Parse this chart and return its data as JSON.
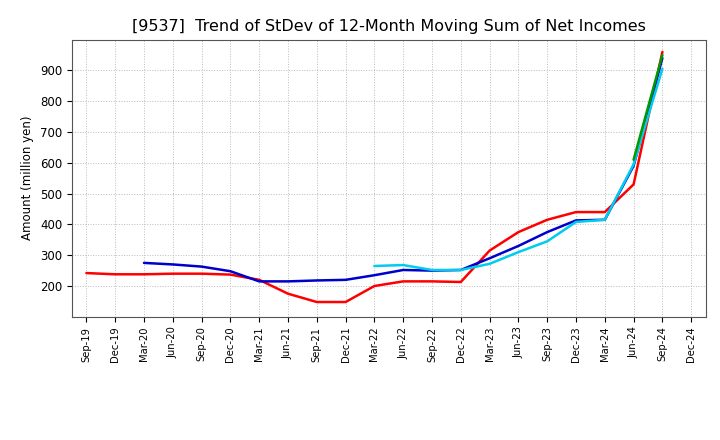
{
  "title": "[9537]  Trend of StDev of 12-Month Moving Sum of Net Incomes",
  "ylabel": "Amount (million yen)",
  "x_labels": [
    "Sep-19",
    "Dec-19",
    "Mar-20",
    "Jun-20",
    "Sep-20",
    "Dec-20",
    "Mar-21",
    "Jun-21",
    "Sep-21",
    "Dec-21",
    "Mar-22",
    "Jun-22",
    "Sep-22",
    "Dec-22",
    "Mar-23",
    "Jun-23",
    "Sep-23",
    "Dec-23",
    "Mar-24",
    "Jun-24",
    "Sep-24",
    "Dec-24"
  ],
  "series": {
    "3 Years": {
      "color": "#ff0000",
      "data": [
        242,
        238,
        238,
        240,
        240,
        237,
        220,
        175,
        148,
        148,
        200,
        215,
        215,
        213,
        315,
        375,
        415,
        440,
        440,
        530,
        960,
        null
      ]
    },
    "5 Years": {
      "color": "#0000cc",
      "data": [
        null,
        null,
        275,
        270,
        263,
        248,
        215,
        215,
        218,
        220,
        235,
        252,
        250,
        252,
        290,
        330,
        375,
        413,
        415,
        590,
        940,
        null
      ]
    },
    "7 Years": {
      "color": "#00ccee",
      "data": [
        null,
        null,
        null,
        null,
        null,
        null,
        null,
        null,
        null,
        null,
        265,
        268,
        252,
        252,
        272,
        310,
        345,
        408,
        415,
        595,
        905,
        null
      ]
    },
    "10 Years": {
      "color": "#009900",
      "data": [
        null,
        null,
        null,
        null,
        null,
        null,
        null,
        null,
        null,
        null,
        null,
        null,
        null,
        null,
        null,
        null,
        null,
        null,
        null,
        610,
        950,
        null
      ]
    }
  },
  "ylim": [
    100,
    1000
  ],
  "yticks": [
    200,
    300,
    400,
    500,
    600,
    700,
    800,
    900
  ],
  "background_color": "#ffffff",
  "grid_color": "#aaaaaa",
  "title_fontsize": 11.5,
  "legend_fontsize": 9.5
}
